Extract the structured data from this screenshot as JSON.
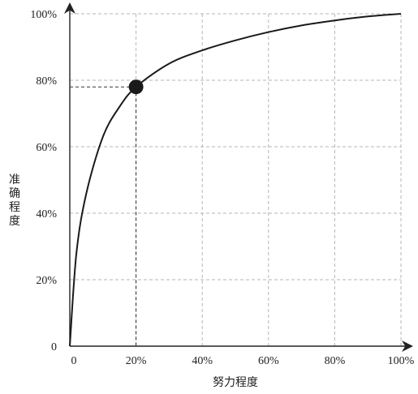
{
  "chart_data": {
    "type": "line",
    "title": "",
    "xlabel": "努力程度",
    "ylabel": "准确程度",
    "xlim": [
      0,
      100
    ],
    "ylim": [
      0,
      100
    ],
    "x_ticks": [
      "0",
      "20%",
      "40%",
      "60%",
      "80%",
      "100%"
    ],
    "y_ticks": [
      "0",
      "20%",
      "40%",
      "60%",
      "80%",
      "100%"
    ],
    "x_tick_values": [
      0,
      20,
      40,
      60,
      80,
      100
    ],
    "y_tick_values": [
      0,
      20,
      40,
      60,
      80,
      100
    ],
    "grid": true,
    "series": [
      {
        "x": [
          0,
          2,
          5,
          10,
          15,
          20,
          30,
          40,
          50,
          60,
          70,
          80,
          90,
          100
        ],
        "y": [
          0,
          28,
          46,
          63,
          72,
          78,
          85,
          89,
          92,
          94.5,
          96.5,
          98,
          99.2,
          100
        ]
      }
    ],
    "highlight_point": {
      "x": 20,
      "y": 78
    }
  }
}
